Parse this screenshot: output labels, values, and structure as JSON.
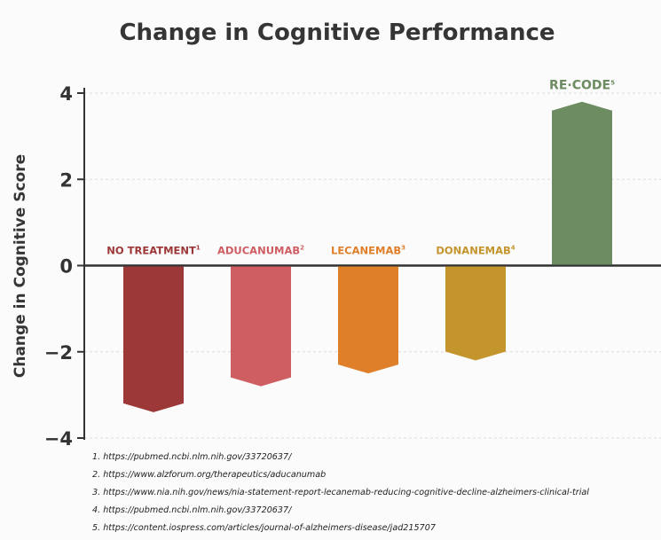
{
  "chart_data": {
    "type": "bar",
    "title": "Change in Cognitive Performance",
    "xlabel": "",
    "ylabel": "Change in Cognitive Score",
    "ylim": [
      -4,
      4
    ],
    "yticks": [
      4,
      2,
      0,
      -2,
      -4
    ],
    "ytick_labels": [
      "4",
      "2",
      "0",
      "−2",
      "−4"
    ],
    "grid": true,
    "categories": [
      {
        "label": "NO TREATMENT",
        "sup": "1",
        "value": -3.4,
        "color": "#9c3838"
      },
      {
        "label": "ADUCANUMAB",
        "sup": "2",
        "value": -2.8,
        "color": "#cf5e63"
      },
      {
        "label": "LECANEMAB",
        "sup": "3",
        "value": -2.5,
        "color": "#e07f2a"
      },
      {
        "label": "DONANEMAB",
        "sup": "4",
        "value": -2.2,
        "color": "#c4952c"
      },
      {
        "label": "RE·CODE",
        "sup": "5",
        "value": 3.8,
        "color": "#6e8c62"
      }
    ]
  },
  "footnotes": [
    "1. https://pubmed.ncbi.nlm.nih.gov/33720637/",
    "2. https://www.alzforum.org/therapeutics/aducanumab",
    "3. https://www.nia.nih.gov/news/nia-statement-report-lecanemab-reducing-cognitive-decline-alzheimers-clinical-trial",
    "4. https://pubmed.ncbi.nlm.nih.gov/33720637/",
    "5. https://content.iospress.com/articles/journal-of-alzheimers-disease/jad215707"
  ]
}
